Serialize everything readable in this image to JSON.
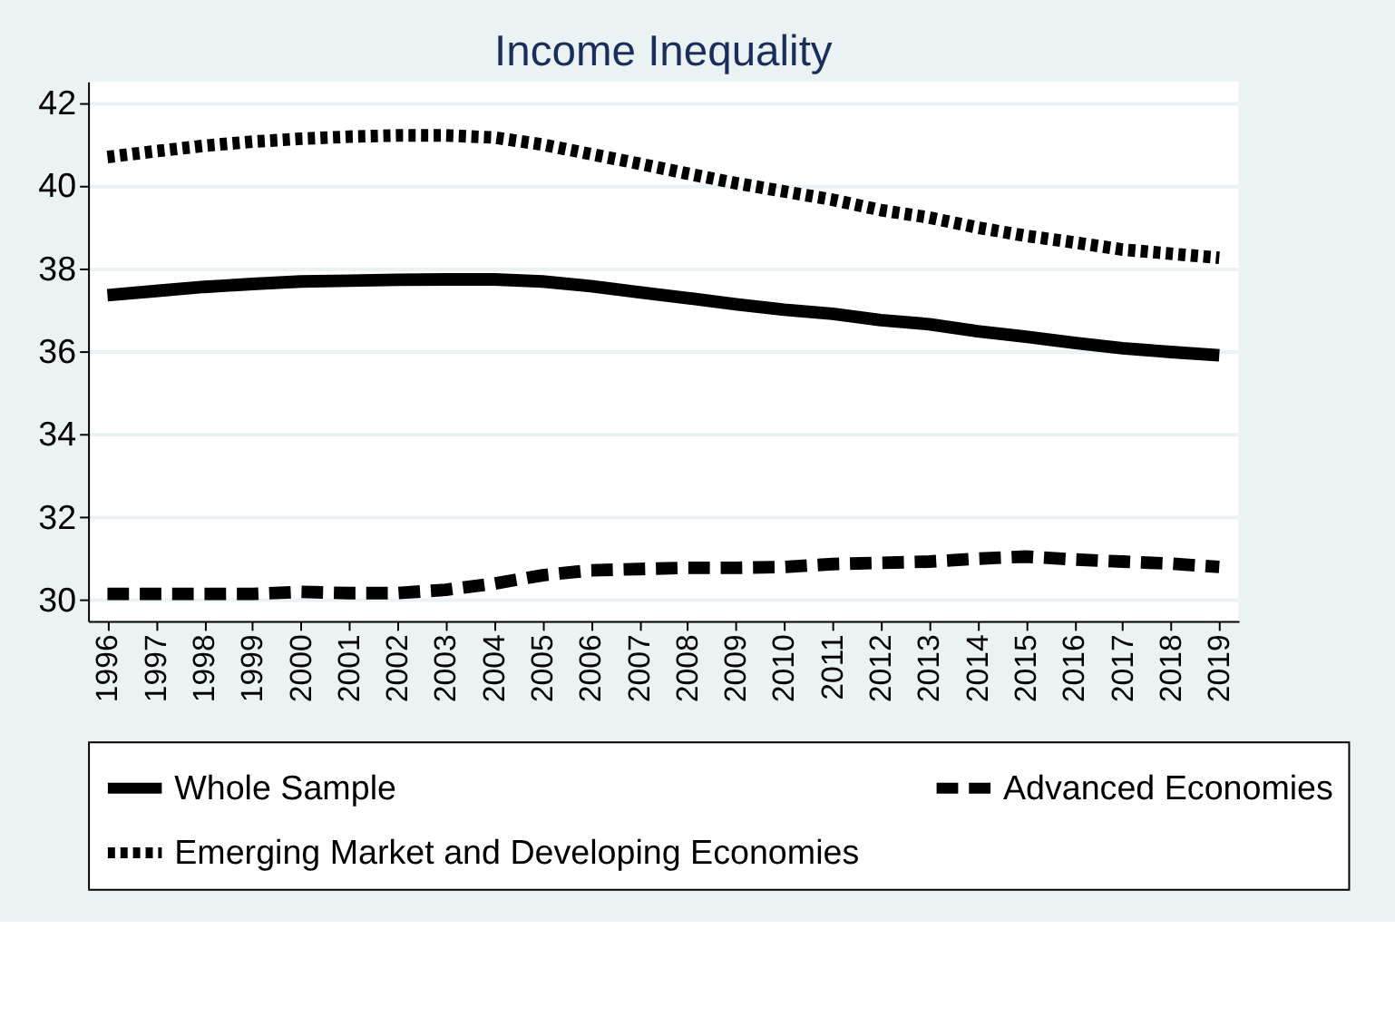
{
  "chart_data": {
    "type": "line",
    "title": "Income Inequality",
    "categories": [
      "1996",
      "1997",
      "1998",
      "1999",
      "2000",
      "2001",
      "2002",
      "2003",
      "2004",
      "2005",
      "2006",
      "2007",
      "2008",
      "2009",
      "2010",
      "2011",
      "2012",
      "2013",
      "2014",
      "2015",
      "2016",
      "2017",
      "2018",
      "2019"
    ],
    "series": [
      {
        "name": "Whole Sample",
        "color": "#000000",
        "line_style": "solid",
        "values": [
          37.35,
          37.45,
          37.55,
          37.62,
          37.68,
          37.7,
          37.72,
          37.73,
          37.73,
          37.68,
          37.57,
          37.42,
          37.28,
          37.13,
          37.0,
          36.9,
          36.75,
          36.65,
          36.48,
          36.35,
          36.2,
          36.07,
          35.98,
          35.9
        ]
      },
      {
        "name": "Advanced Economies",
        "color": "#000000",
        "line_style": "dashed",
        "values": [
          30.15,
          30.15,
          30.15,
          30.15,
          30.2,
          30.17,
          30.17,
          30.25,
          30.4,
          30.6,
          30.72,
          30.75,
          30.78,
          30.78,
          30.8,
          30.87,
          30.9,
          30.93,
          31.0,
          31.05,
          30.98,
          30.93,
          30.88,
          30.8
        ]
      },
      {
        "name": "Emerging Market and Developing Economies",
        "color": "#000000",
        "line_style": "dotted",
        "values": [
          40.68,
          40.82,
          40.95,
          41.05,
          41.12,
          41.17,
          41.2,
          41.2,
          41.15,
          40.98,
          40.75,
          40.52,
          40.28,
          40.05,
          39.85,
          39.65,
          39.4,
          39.22,
          38.98,
          38.78,
          38.62,
          38.45,
          38.35,
          38.25
        ]
      }
    ],
    "ylim": [
      29.5,
      42.5
    ],
    "yticks": [
      30,
      32,
      34,
      36,
      38,
      40,
      42
    ],
    "grid": "y",
    "legend": "bottom"
  }
}
